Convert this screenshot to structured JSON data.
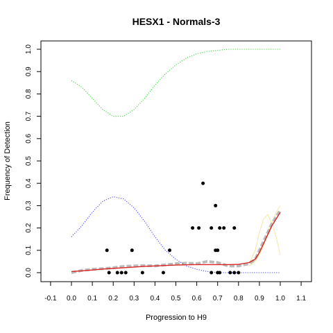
{
  "chart_data": {
    "type": "scatter",
    "title": "HESX1 - Normals-3",
    "xlabel": "Progression to H9",
    "ylabel": "Frequency of Detection",
    "xlim": [
      -0.1,
      1.1
    ],
    "ylim": [
      0.0,
      1.0
    ],
    "x_ticks": [
      "-0.1",
      "0.0",
      "0.1",
      "0.2",
      "0.3",
      "0.4",
      "0.5",
      "0.6",
      "0.7",
      "0.8",
      "0.9",
      "1.0",
      "1.1"
    ],
    "y_ticks": [
      "0.0",
      "0.1",
      "0.2",
      "0.3",
      "0.4",
      "0.5",
      "0.6",
      "0.7",
      "0.8",
      "0.9",
      "1.0"
    ],
    "grid": false,
    "points": {
      "color": "#000000",
      "x": [
        0.17,
        0.29,
        0.47,
        0.69,
        0.7,
        0.58,
        0.61,
        0.67,
        0.71,
        0.73,
        0.78,
        0.63,
        0.69,
        0.18,
        0.22,
        0.24,
        0.26,
        0.34,
        0.44,
        0.67,
        0.7,
        0.71,
        0.76,
        0.78,
        0.8
      ],
      "y": [
        0.1,
        0.1,
        0.1,
        0.1,
        0.1,
        0.2,
        0.2,
        0.2,
        0.2,
        0.2,
        0.2,
        0.4,
        0.3,
        0.0,
        0.0,
        0.0,
        0.0,
        0.0,
        0.0,
        0.0,
        0.0,
        0.0,
        0.0,
        0.0,
        0.0
      ]
    },
    "series": [
      {
        "style": "dotted",
        "color": "#33dd33",
        "x": [
          0.0,
          0.05,
          0.1,
          0.15,
          0.2,
          0.25,
          0.3,
          0.35,
          0.4,
          0.45,
          0.5,
          0.55,
          0.6,
          0.65,
          0.7,
          0.75,
          0.8,
          0.85,
          0.9,
          0.95,
          1.0
        ],
        "y": [
          0.86,
          0.83,
          0.78,
          0.73,
          0.7,
          0.7,
          0.73,
          0.78,
          0.84,
          0.89,
          0.93,
          0.96,
          0.98,
          0.99,
          0.995,
          1.0,
          1.0,
          1.0,
          1.0,
          1.0,
          1.0
        ]
      },
      {
        "style": "dotted",
        "color": "#4444ee",
        "x": [
          0.0,
          0.05,
          0.1,
          0.15,
          0.2,
          0.25,
          0.3,
          0.35,
          0.4,
          0.45,
          0.5,
          0.55,
          0.6,
          0.65,
          0.7,
          0.75,
          0.8,
          0.85,
          0.9,
          0.95,
          1.0
        ],
        "y": [
          0.16,
          0.21,
          0.27,
          0.32,
          0.34,
          0.33,
          0.29,
          0.23,
          0.16,
          0.1,
          0.06,
          0.03,
          0.015,
          0.005,
          0.0,
          0.0,
          0.0,
          0.0,
          0.0,
          0.0,
          0.0
        ]
      },
      {
        "style": "solid",
        "color": "#dd2222",
        "x": [
          0.0,
          0.05,
          0.1,
          0.15,
          0.2,
          0.25,
          0.3,
          0.35,
          0.4,
          0.45,
          0.5,
          0.55,
          0.6,
          0.65,
          0.7,
          0.75,
          0.8,
          0.85,
          0.88,
          0.9,
          0.93,
          0.96,
          1.0
        ],
        "y": [
          0.005,
          0.008,
          0.012,
          0.016,
          0.019,
          0.022,
          0.025,
          0.028,
          0.03,
          0.032,
          0.034,
          0.035,
          0.036,
          0.036,
          0.036,
          0.036,
          0.037,
          0.045,
          0.06,
          0.09,
          0.15,
          0.21,
          0.27
        ]
      },
      {
        "style": "dashed-thick",
        "color": "#bbbbbb",
        "x": [
          0.0,
          0.05,
          0.1,
          0.15,
          0.2,
          0.25,
          0.3,
          0.35,
          0.4,
          0.45,
          0.5,
          0.55,
          0.6,
          0.65,
          0.7,
          0.75,
          0.8,
          0.85,
          0.88,
          0.9,
          0.93,
          0.96,
          1.0
        ],
        "y": [
          0.0,
          0.01,
          0.015,
          0.018,
          0.022,
          0.028,
          0.03,
          0.032,
          0.03,
          0.035,
          0.04,
          0.042,
          0.04,
          0.05,
          0.045,
          0.03,
          0.03,
          0.04,
          0.06,
          0.1,
          0.16,
          0.22,
          0.28
        ]
      },
      {
        "style": "thin",
        "color": "#f2eaa0",
        "x": [
          0.85,
          0.88,
          0.9,
          0.92,
          0.94,
          0.96,
          0.98,
          1.0
        ],
        "y": [
          0.04,
          0.1,
          0.18,
          0.24,
          0.26,
          0.22,
          0.16,
          0.08
        ]
      },
      {
        "style": "thin",
        "color": "#f2eaa0",
        "x": [
          0.85,
          0.88,
          0.9,
          0.92,
          0.94,
          0.96,
          0.98,
          1.0
        ],
        "y": [
          0.03,
          0.05,
          0.08,
          0.12,
          0.18,
          0.22,
          0.27,
          0.3
        ]
      }
    ]
  }
}
